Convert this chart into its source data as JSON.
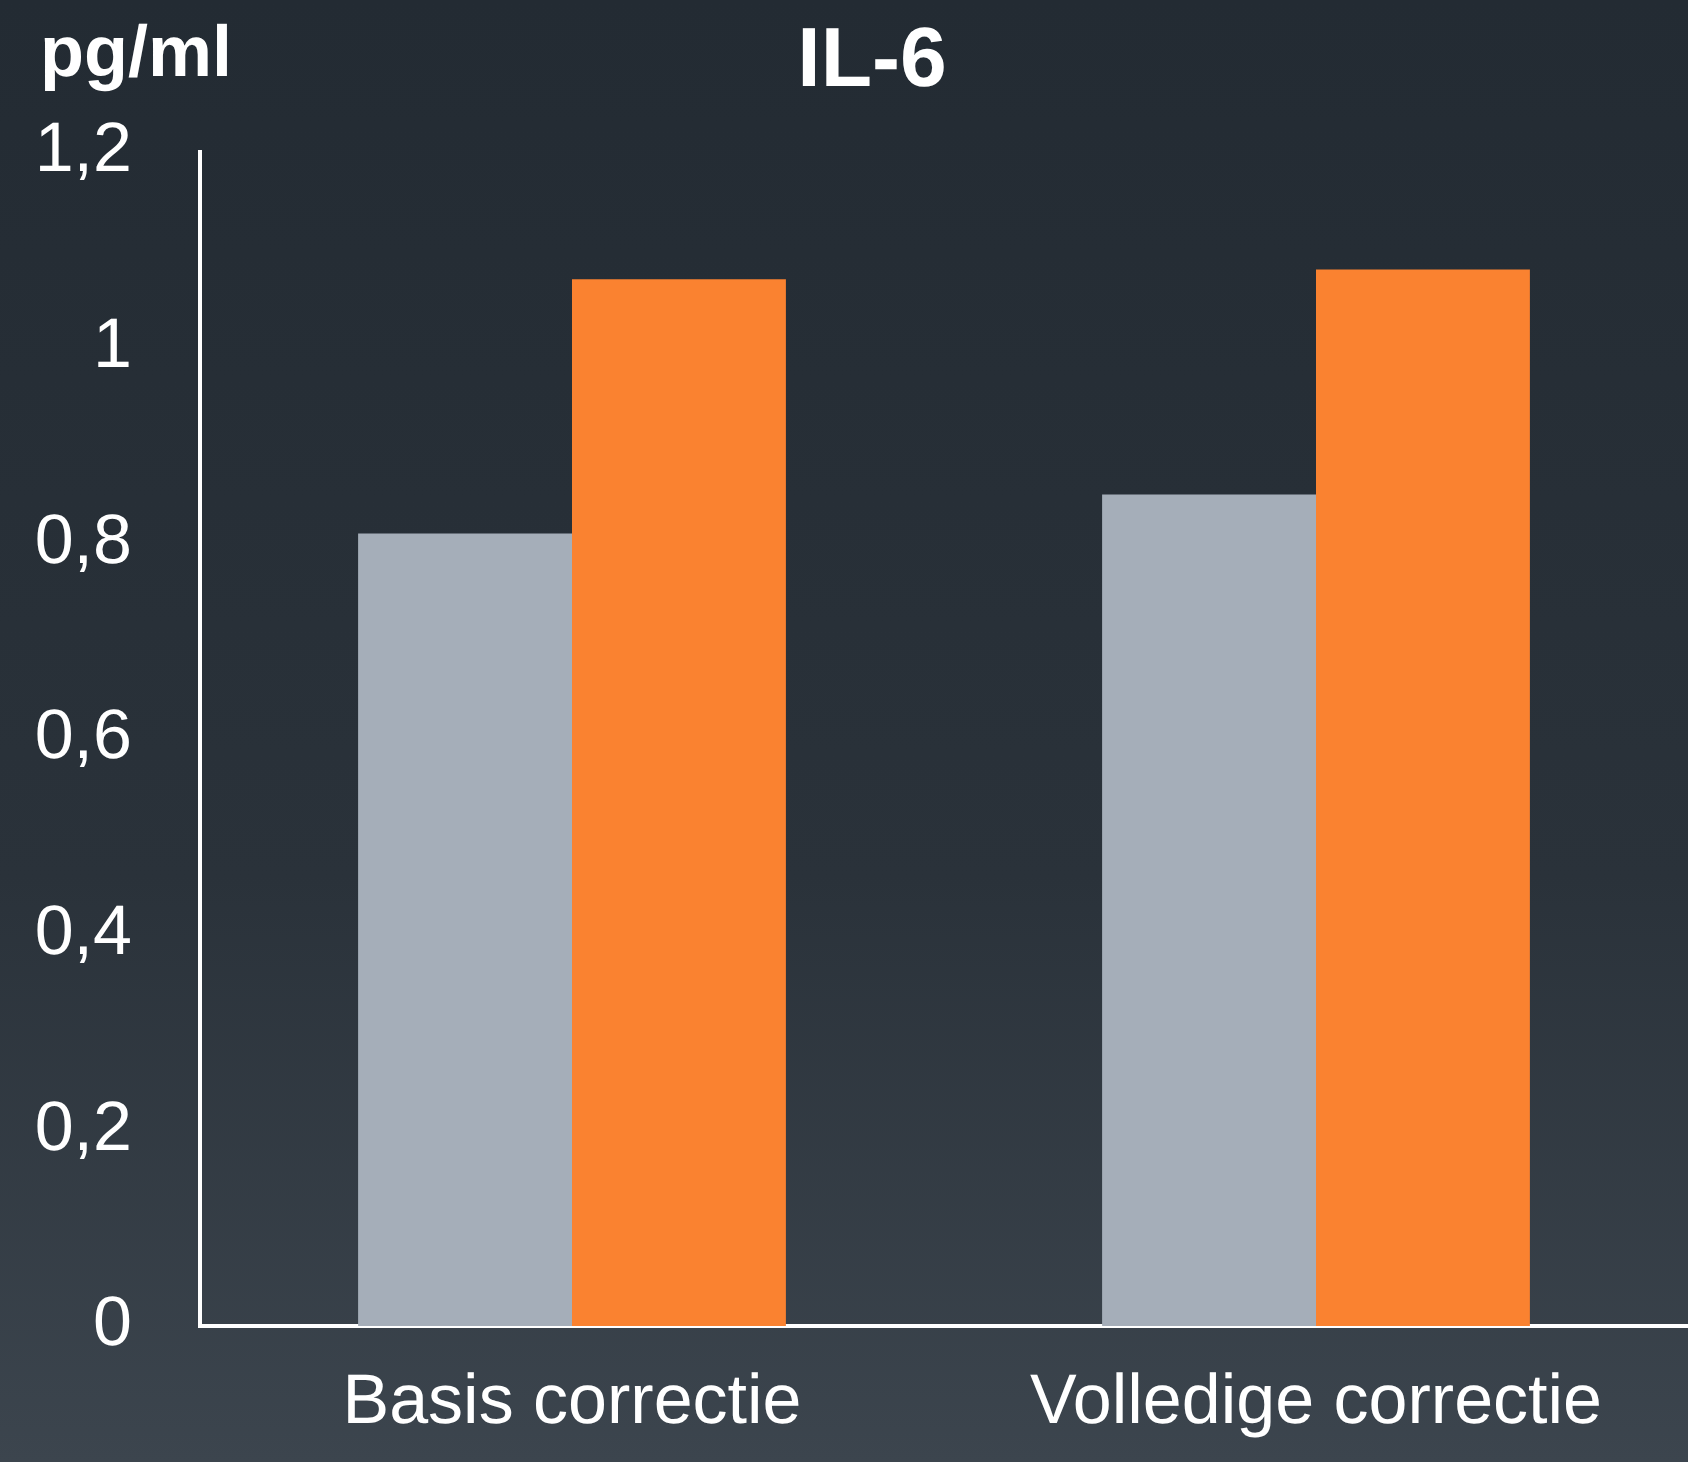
{
  "chart_data": {
    "type": "bar",
    "title": "IL-6",
    "ylabel": "pg/ml",
    "categories": [
      "Basis correctie",
      "Volledige correctie"
    ],
    "series": [
      {
        "color": "#a5aeb9",
        "values": [
          0.81,
          0.85
        ]
      },
      {
        "color": "#fa8230",
        "values": [
          1.07,
          1.08
        ]
      }
    ],
    "ylim": [
      0,
      1.2
    ],
    "yticks": [
      0,
      {
        "value": 0.2,
        "label": "0,2"
      },
      {
        "value": 0.4,
        "label": "0,4"
      },
      {
        "value": 0.6,
        "label": "0,6"
      },
      {
        "value": 0.8,
        "label": "0,8"
      },
      1,
      {
        "value": 1.2,
        "label": "1,2"
      }
    ],
    "grid": false,
    "legend": false
  }
}
